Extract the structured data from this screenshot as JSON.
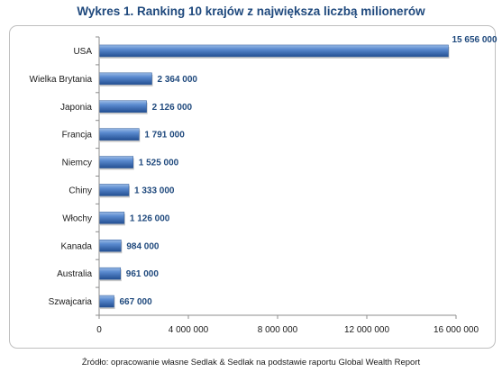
{
  "chart_data": {
    "type": "bar",
    "orientation": "horizontal",
    "title": "Wykres 1. Ranking 10 krajów z największa liczbą milionerów",
    "categories": [
      "USA",
      "Wielka Brytania",
      "Japonia",
      "Francja",
      "Niemcy",
      "Chiny",
      "Włochy",
      "Kanada",
      "Australia",
      "Szwajcaria"
    ],
    "values": [
      15656000,
      2364000,
      2126000,
      1791000,
      1525000,
      1333000,
      1126000,
      984000,
      961000,
      667000
    ],
    "value_labels": [
      "15 656 000",
      "2 364 000",
      "2 126 000",
      "1 791 000",
      "1 525 000",
      "1 333 000",
      "1 126 000",
      "984 000",
      "961 000",
      "667 000"
    ],
    "xlim": [
      0,
      16000000
    ],
    "x_ticks": [
      0,
      4000000,
      8000000,
      12000000,
      16000000
    ],
    "x_tick_labels": [
      "0",
      "4 000 000",
      "8 000 000",
      "12 000 000",
      "16 000 000"
    ],
    "grid": false,
    "legend": "none",
    "bar_color": "#4a7cc0",
    "label_color": "#1f497d"
  },
  "source": "Źródło: opracowanie własne Sedlak & Sedlak na podstawie raportu Global Wealth Report"
}
